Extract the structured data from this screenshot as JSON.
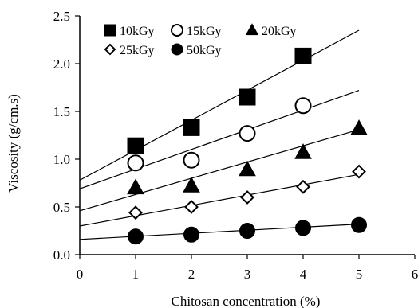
{
  "chart_data": {
    "type": "scatter",
    "title": "",
    "xlabel": "Chitosan concentration (%)",
    "ylabel": "Viscosity (g/cm.s)",
    "xlim": [
      0,
      6
    ],
    "ylim": [
      0,
      2.5
    ],
    "x_ticks": [
      0,
      1,
      2,
      3,
      4,
      5,
      6
    ],
    "y_ticks": [
      0.0,
      0.5,
      1.0,
      1.5,
      2.0,
      2.5
    ],
    "x_tick_labels": [
      "0",
      "1",
      "2",
      "3",
      "4",
      "5",
      "6"
    ],
    "y_tick_labels": [
      "0.0",
      "0.5",
      "1.0",
      "1.5",
      "2.0",
      "2.5"
    ],
    "grid": false,
    "legend_position": "top-left",
    "series": [
      {
        "name": "10kGy",
        "marker": "square",
        "filled": true,
        "x": [
          1,
          2,
          3,
          4
        ],
        "y": [
          1.14,
          1.33,
          1.65,
          2.08
        ],
        "trend": {
          "x": [
            0,
            5
          ],
          "y": [
            0.78,
            2.35
          ]
        }
      },
      {
        "name": "15kGy",
        "marker": "circle",
        "filled": false,
        "x": [
          1,
          2,
          3,
          4
        ],
        "y": [
          0.96,
          0.99,
          1.27,
          1.56
        ],
        "trend": {
          "x": [
            0,
            5
          ],
          "y": [
            0.69,
            1.72
          ]
        }
      },
      {
        "name": "20kGy",
        "marker": "triangle",
        "filled": true,
        "x": [
          1,
          2,
          3,
          4,
          5
        ],
        "y": [
          0.7,
          0.72,
          0.89,
          1.07,
          1.32
        ],
        "trend": {
          "x": [
            0,
            5
          ],
          "y": [
            0.46,
            1.31
          ]
        }
      },
      {
        "name": "25kGy",
        "marker": "diamond",
        "filled": false,
        "x": [
          1,
          2,
          3,
          4,
          5
        ],
        "y": [
          0.44,
          0.5,
          0.6,
          0.71,
          0.87
        ],
        "trend": {
          "x": [
            0,
            5
          ],
          "y": [
            0.3,
            0.84
          ]
        }
      },
      {
        "name": "50kGy",
        "marker": "circle",
        "filled": true,
        "x": [
          1,
          2,
          3,
          4,
          5
        ],
        "y": [
          0.19,
          0.21,
          0.25,
          0.28,
          0.31
        ],
        "trend": {
          "x": [
            0,
            5
          ],
          "y": [
            0.16,
            0.32
          ]
        }
      }
    ]
  }
}
